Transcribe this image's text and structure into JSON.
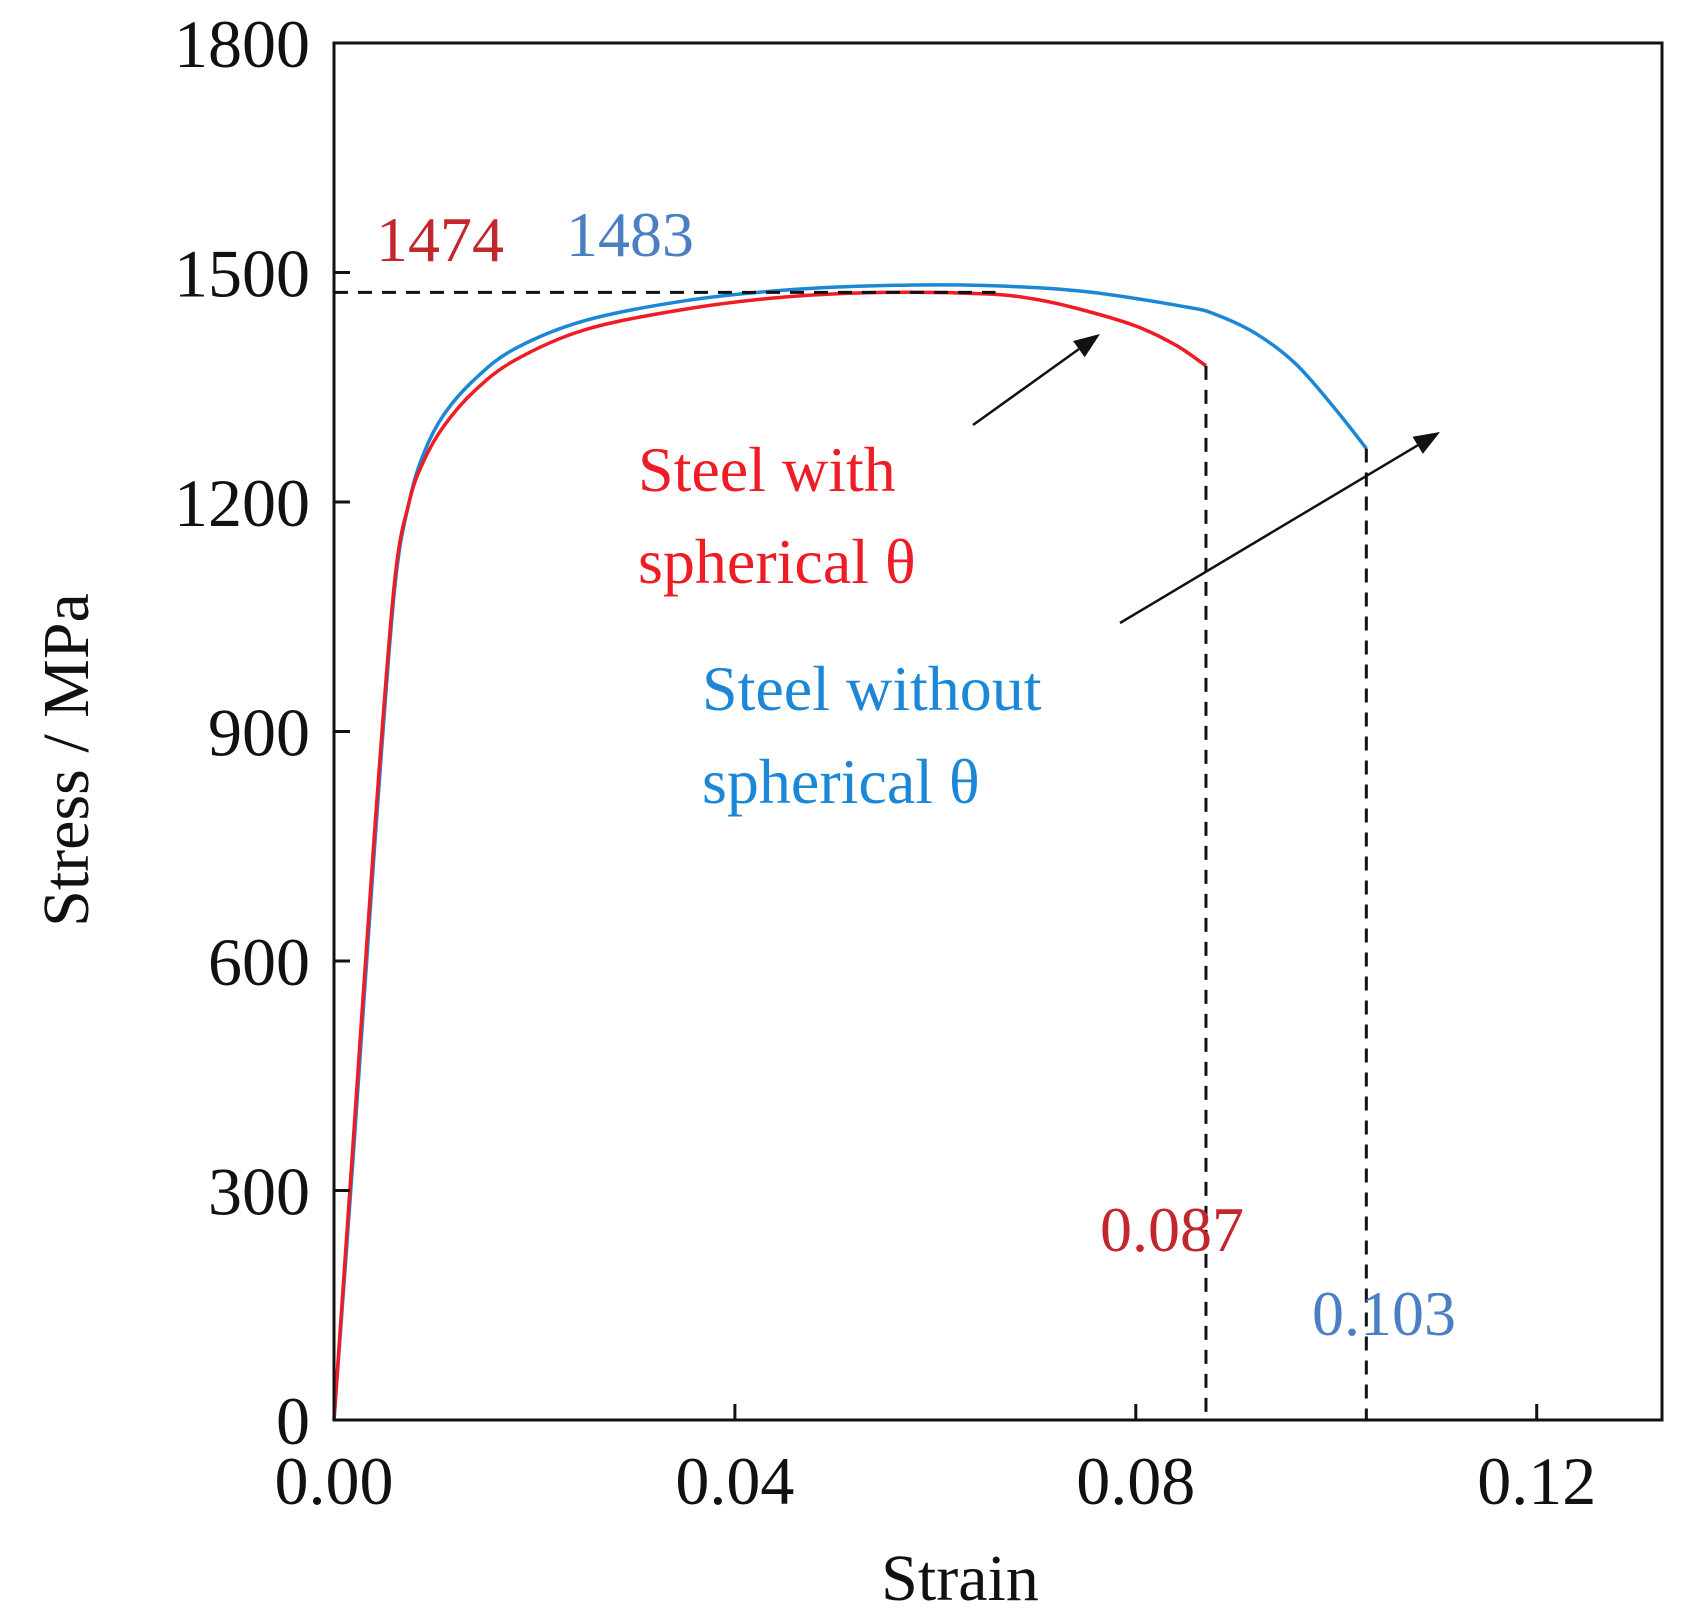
{
  "chart_data": {
    "type": "line",
    "xlabel": "Strain",
    "ylabel": "Stress / MPa",
    "xlim": [
      0,
      0.1325
    ],
    "ylim": [
      0,
      1800
    ],
    "x_ticks": [
      0.0,
      0.04,
      0.08,
      0.12
    ],
    "x_tick_labels": [
      "0.00",
      "0.04",
      "0.08",
      "0.12"
    ],
    "y_ticks": [
      0,
      300,
      600,
      900,
      1200,
      1500,
      1800
    ],
    "y_tick_labels": [
      "0",
      "300",
      "600",
      "900",
      "1200",
      "1500",
      "1800"
    ],
    "grid": false,
    "series": [
      {
        "name": "Steel with spherical θ",
        "label_lines": [
          "Steel with",
          "spherical θ"
        ],
        "color": "#ee1c24",
        "x": [
          0.0,
          0.002,
          0.004,
          0.006,
          0.0075,
          0.009,
          0.011,
          0.014,
          0.018,
          0.025,
          0.035,
          0.045,
          0.055,
          0.065,
          0.07,
          0.075,
          0.08,
          0.084,
          0.087
        ],
        "y": [
          0,
          380,
          760,
          1090,
          1200,
          1255,
          1300,
          1345,
          1385,
          1425,
          1452,
          1468,
          1474,
          1472,
          1465,
          1450,
          1430,
          1405,
          1378
        ]
      },
      {
        "name": "Steel without spherical θ",
        "label_lines": [
          "Steel without",
          "spherical θ"
        ],
        "color": "#1b87d6",
        "x": [
          0.0,
          0.002,
          0.004,
          0.006,
          0.0075,
          0.009,
          0.011,
          0.014,
          0.018,
          0.025,
          0.035,
          0.045,
          0.055,
          0.065,
          0.075,
          0.085,
          0.088,
          0.092,
          0.096,
          0.1,
          0.103
        ],
        "y": [
          0,
          360,
          740,
          1080,
          1200,
          1265,
          1315,
          1360,
          1400,
          1437,
          1463,
          1477,
          1483,
          1483,
          1475,
          1455,
          1445,
          1420,
          1380,
          1320,
          1270
        ]
      }
    ],
    "reference_lines": {
      "uts_line": {
        "y": 1474,
        "x_end": 0.066
      },
      "fracture_lines": [
        {
          "x": 0.087,
          "y_top": 1378
        },
        {
          "x": 0.103,
          "y_top": 1270
        }
      ]
    },
    "annotations": [
      {
        "id": "uts-red",
        "text": "1474",
        "color": "#c1272d"
      },
      {
        "id": "uts-blue",
        "text": "1483",
        "color": "#4a7fc1"
      },
      {
        "id": "strain-red",
        "text": "0.087",
        "color": "#c1272d"
      },
      {
        "id": "strain-blue",
        "text": "0.103",
        "color": "#4a7fc1"
      }
    ]
  }
}
